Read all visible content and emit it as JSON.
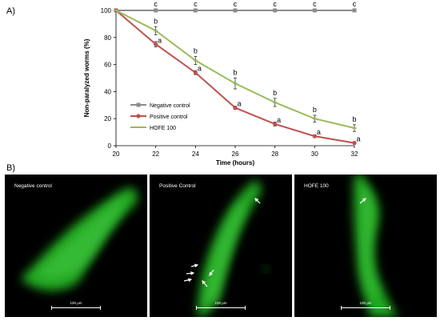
{
  "panel_a_label": "A)",
  "panel_b_label": "B)",
  "chart_data": {
    "type": "line",
    "xlabel": "Time (hours)",
    "ylabel": "Non-paralyzed worms (%)",
    "x": [
      20,
      22,
      24,
      26,
      28,
      30,
      32
    ],
    "xlim": [
      20,
      32
    ],
    "ylim": [
      0,
      100
    ],
    "yticks": [
      0,
      20,
      40,
      60,
      80,
      100
    ],
    "grid": false,
    "legend_position": "bottom-left",
    "series": [
      {
        "name": "Negative control",
        "color": "#8c8c8c",
        "values": [
          100,
          100,
          100,
          100,
          100,
          100,
          100
        ],
        "errors": [
          0,
          0,
          0,
          0,
          0,
          0,
          0
        ],
        "letters": [
          "",
          "c",
          "c",
          "c",
          "c",
          "c",
          "c"
        ]
      },
      {
        "name": "Positive control",
        "color": "#c0504d",
        "values": [
          100,
          75,
          54,
          28,
          16,
          7,
          2
        ],
        "errors": [
          0,
          2,
          1.5,
          1.2,
          1.5,
          1,
          1
        ],
        "letters": [
          "",
          "a",
          "a",
          "a",
          "a",
          "a",
          "a"
        ]
      },
      {
        "name": "HOFE 100",
        "color": "#9bbb59",
        "values": [
          100,
          85,
          63,
          46,
          32,
          20,
          13
        ],
        "errors": [
          0,
          3,
          3,
          4,
          3,
          2.5,
          2.5
        ],
        "letters": [
          "",
          "b",
          "b",
          "b",
          "b",
          "b",
          "b"
        ]
      }
    ]
  },
  "micrographs": [
    {
      "label": "Negative control",
      "scale": "100 µm"
    },
    {
      "label": "Positive Control",
      "scale": "100 µm"
    },
    {
      "label": "HOFE 100",
      "scale": "100 µm"
    }
  ]
}
